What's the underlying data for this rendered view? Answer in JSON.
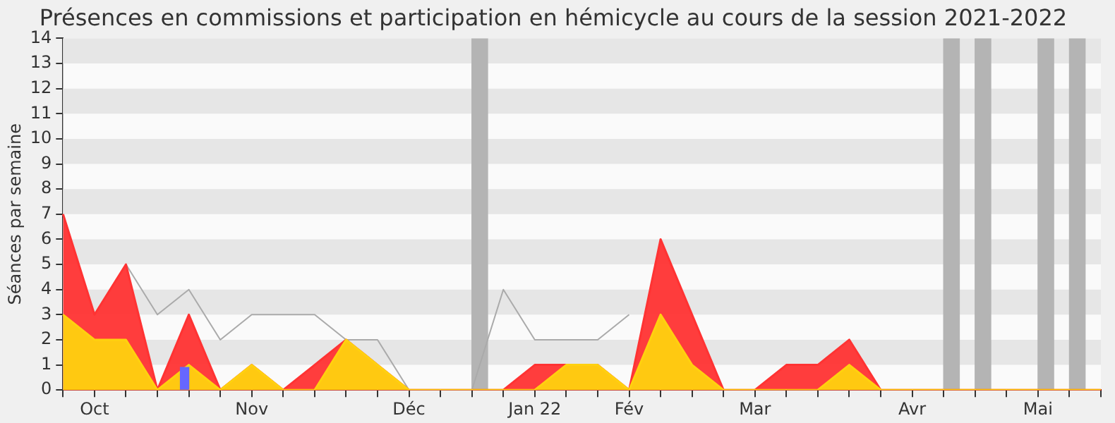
{
  "chart_data": {
    "type": "area",
    "title": "Présences en commissions et participation en hémicycle au cours de la session 2021-2022",
    "ylabel": "Séances par semaine",
    "categories": [
      null,
      "Oct",
      null,
      null,
      null,
      null,
      "Nov",
      null,
      null,
      null,
      null,
      "Déc",
      null,
      null,
      null,
      "Jan 22",
      null,
      null,
      "Fév",
      null,
      null,
      null,
      "Mar",
      null,
      null,
      null,
      null,
      "Avr",
      null,
      null,
      null,
      "Mai",
      null,
      null
    ],
    "series": [
      {
        "type": "bar",
        "color": "#b4b4b4",
        "values": [
          null,
          null,
          null,
          null,
          null,
          null,
          null,
          null,
          null,
          null,
          null,
          null,
          null,
          14,
          null,
          null,
          null,
          null,
          null,
          null,
          null,
          null,
          null,
          null,
          null,
          null,
          null,
          null,
          14,
          14,
          null,
          14,
          14,
          null
        ]
      },
      {
        "type": "line",
        "color": "#aaaaaa",
        "values": [
          null,
          null,
          5,
          3,
          4,
          2,
          3,
          3,
          3,
          2,
          2,
          0,
          0,
          0,
          4,
          2,
          2,
          2,
          3,
          null,
          null,
          null,
          null,
          null,
          null,
          null,
          null,
          null,
          null,
          null,
          null,
          null,
          null,
          null
        ]
      },
      {
        "color": "#ff3333",
        "values": [
          7,
          3,
          5,
          0,
          3,
          0,
          1,
          0,
          1,
          2,
          1,
          0,
          0,
          0,
          0,
          1,
          1,
          1,
          0,
          6,
          3,
          0,
          0,
          1,
          1,
          2,
          0,
          0,
          0,
          0,
          0,
          0,
          0,
          0
        ]
      },
      {
        "color": "#ffd10f",
        "values": [
          3,
          2,
          2,
          0,
          1,
          0,
          1,
          0,
          0,
          2,
          1,
          0,
          0,
          0,
          0,
          0,
          1,
          1,
          0,
          3,
          1,
          0,
          0,
          0,
          0,
          1,
          0,
          0,
          0,
          0,
          0,
          0,
          0,
          0
        ]
      },
      {
        "type": "bar",
        "color": "#6666ff",
        "values": [
          null,
          null,
          null,
          null,
          0.9,
          null,
          null,
          null,
          null,
          null,
          null,
          null,
          null,
          null,
          null,
          null,
          null,
          null,
          null,
          null,
          null,
          null,
          null,
          null,
          null,
          null,
          null,
          null,
          null,
          null,
          null,
          null,
          null,
          null
        ]
      }
    ],
    "ylim": [
      0,
      14
    ],
    "yticks": [
      0,
      1,
      2,
      3,
      4,
      5,
      6,
      7,
      8,
      9,
      10,
      11,
      12,
      13,
      14
    ],
    "marker": "none",
    "legend": false
  }
}
